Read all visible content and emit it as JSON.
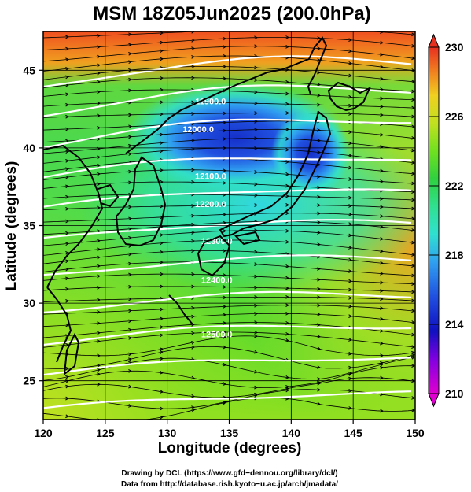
{
  "title": "MSM 18Z05Jun2025 (200.0hPa)",
  "xlabel": "Longitude (degrees)",
  "ylabel": "Latitude  (degrees)",
  "credits": [
    "Drawing by DCL (https://www.gfd−dennou.org/library/dcl/)",
    "Data from http://database.rish.kyoto−u.ac.jp/arch/jmadata/"
  ],
  "map": {
    "lon_range": [
      120,
      150
    ],
    "lat_range": [
      22.5,
      47.5
    ],
    "x_ticks": [
      120,
      125,
      130,
      135,
      140,
      145,
      150
    ],
    "y_ticks": [
      25,
      30,
      35,
      40,
      45
    ],
    "grid": true
  },
  "colorbar": {
    "range": [
      210,
      230
    ],
    "tick_labels": [
      "230",
      "226",
      "222",
      "218",
      "214",
      "210"
    ],
    "tick_values": [
      230,
      226,
      222,
      218,
      214,
      210
    ],
    "colors": [
      "#e000d0",
      "#8000e0",
      "#1010c0",
      "#2050e0",
      "#30a0f0",
      "#30e0d0",
      "#30e090",
      "#30d040",
      "#70e020",
      "#c0e020",
      "#f0d020",
      "#f08020",
      "#e83020"
    ]
  },
  "contours": {
    "labels": [
      "11900.0",
      "12000.0",
      "12100.0",
      "12200.0",
      "12300.0",
      "12400.0",
      "12500.0"
    ],
    "label_positions": [
      {
        "lon": 133.5,
        "lat": 42.8
      },
      {
        "lon": 132.5,
        "lat": 41.0
      },
      {
        "lon": 133.5,
        "lat": 38.0
      },
      {
        "lon": 133.5,
        "lat": 36.2
      },
      {
        "lon": 134.0,
        "lat": 33.8
      },
      {
        "lon": 134.0,
        "lat": 31.3
      },
      {
        "lon": 134.0,
        "lat": 27.8
      }
    ]
  }
}
